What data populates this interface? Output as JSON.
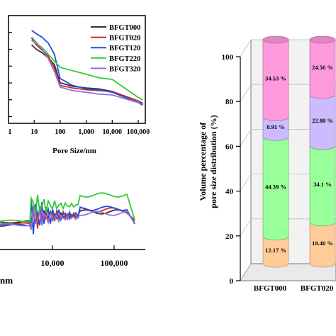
{
  "chart_data": [
    {
      "type": "line",
      "xlabel": "Pore Size/nm",
      "ylabel": "",
      "xscale": "log",
      "x_tick_labels": [
        "1",
        "10",
        "100",
        "1,000",
        "10,000",
        "100,000"
      ],
      "legend_position": "top-right",
      "series": [
        {
          "name": "BFGT000",
          "color": "#333333",
          "x": [
            8,
            12,
            20,
            35,
            60,
            100,
            300,
            1000,
            3000,
            10000,
            100000,
            150000
          ],
          "y": [
            0.91,
            0.86,
            0.82,
            0.76,
            0.68,
            0.47,
            0.43,
            0.41,
            0.4,
            0.37,
            0.26,
            0.23
          ]
        },
        {
          "name": "BFGT020",
          "color": "#d62728",
          "x": [
            8,
            12,
            20,
            35,
            60,
            100,
            300,
            1000,
            3000,
            10000,
            100000,
            150000
          ],
          "y": [
            0.99,
            0.91,
            0.85,
            0.78,
            0.64,
            0.44,
            0.41,
            0.39,
            0.38,
            0.37,
            0.26,
            0.21
          ]
        },
        {
          "name": "BFGT120",
          "color": "#1f4fdf",
          "x": [
            8,
            12,
            20,
            35,
            60,
            100,
            300,
            1000,
            3000,
            10000,
            100000,
            150000
          ],
          "y": [
            1.08,
            1.04,
            1.0,
            0.93,
            0.8,
            0.52,
            0.44,
            0.4,
            0.39,
            0.36,
            0.24,
            0.21
          ]
        },
        {
          "name": "BFGT220",
          "color": "#33cc33",
          "x": [
            8,
            12,
            20,
            35,
            60,
            100,
            300,
            1000,
            3000,
            10000,
            100000,
            150000
          ],
          "y": [
            0.96,
            0.93,
            0.88,
            0.8,
            0.72,
            0.65,
            0.61,
            0.57,
            0.53,
            0.51,
            0.3,
            0.27
          ]
        },
        {
          "name": "BFGT320",
          "color": "#9370db",
          "x": [
            8,
            12,
            20,
            35,
            60,
            100,
            300,
            1000,
            3000,
            10000,
            100000,
            150000
          ],
          "y": [
            1.0,
            0.94,
            0.86,
            0.75,
            0.6,
            0.42,
            0.38,
            0.36,
            0.34,
            0.33,
            0.24,
            0.22
          ]
        }
      ]
    },
    {
      "type": "line",
      "xlabel": "nm",
      "ylabel": "",
      "xscale": "log",
      "x_tick_labels": [
        "10,000",
        "100,000"
      ],
      "series_colors": [
        "#333333",
        "#d62728",
        "#1f4fdf",
        "#33cc33",
        "#9370db"
      ]
    },
    {
      "type": "bar",
      "stacked": true,
      "style": "3d-cylinder",
      "ylabel_line1": "Volume percentage of",
      "ylabel_line2": "pore size distribution (%)",
      "ylim": [
        0,
        100
      ],
      "y_ticks": [
        "0",
        "20",
        "40",
        "60",
        "80",
        "100"
      ],
      "categories": [
        "BFGT000",
        "BFGT020"
      ],
      "segments": [
        {
          "color": "#ffcc99",
          "values": [
            12.17,
            18.46
          ],
          "labels": [
            "12.17 %",
            "18.46 %"
          ]
        },
        {
          "color": "#99ff99",
          "values": [
            44.39,
            34.1
          ],
          "labels": [
            "44.39 %",
            "34.1 %"
          ]
        },
        {
          "color": "#ccbbff",
          "values": [
            8.91,
            22.88
          ],
          "labels": [
            "8.91 %",
            "22.88 %"
          ]
        },
        {
          "color": "#ff99dd",
          "values": [
            34.53,
            24.56
          ],
          "labels": [
            "34.53 %",
            "24.56 %"
          ]
        }
      ]
    }
  ]
}
